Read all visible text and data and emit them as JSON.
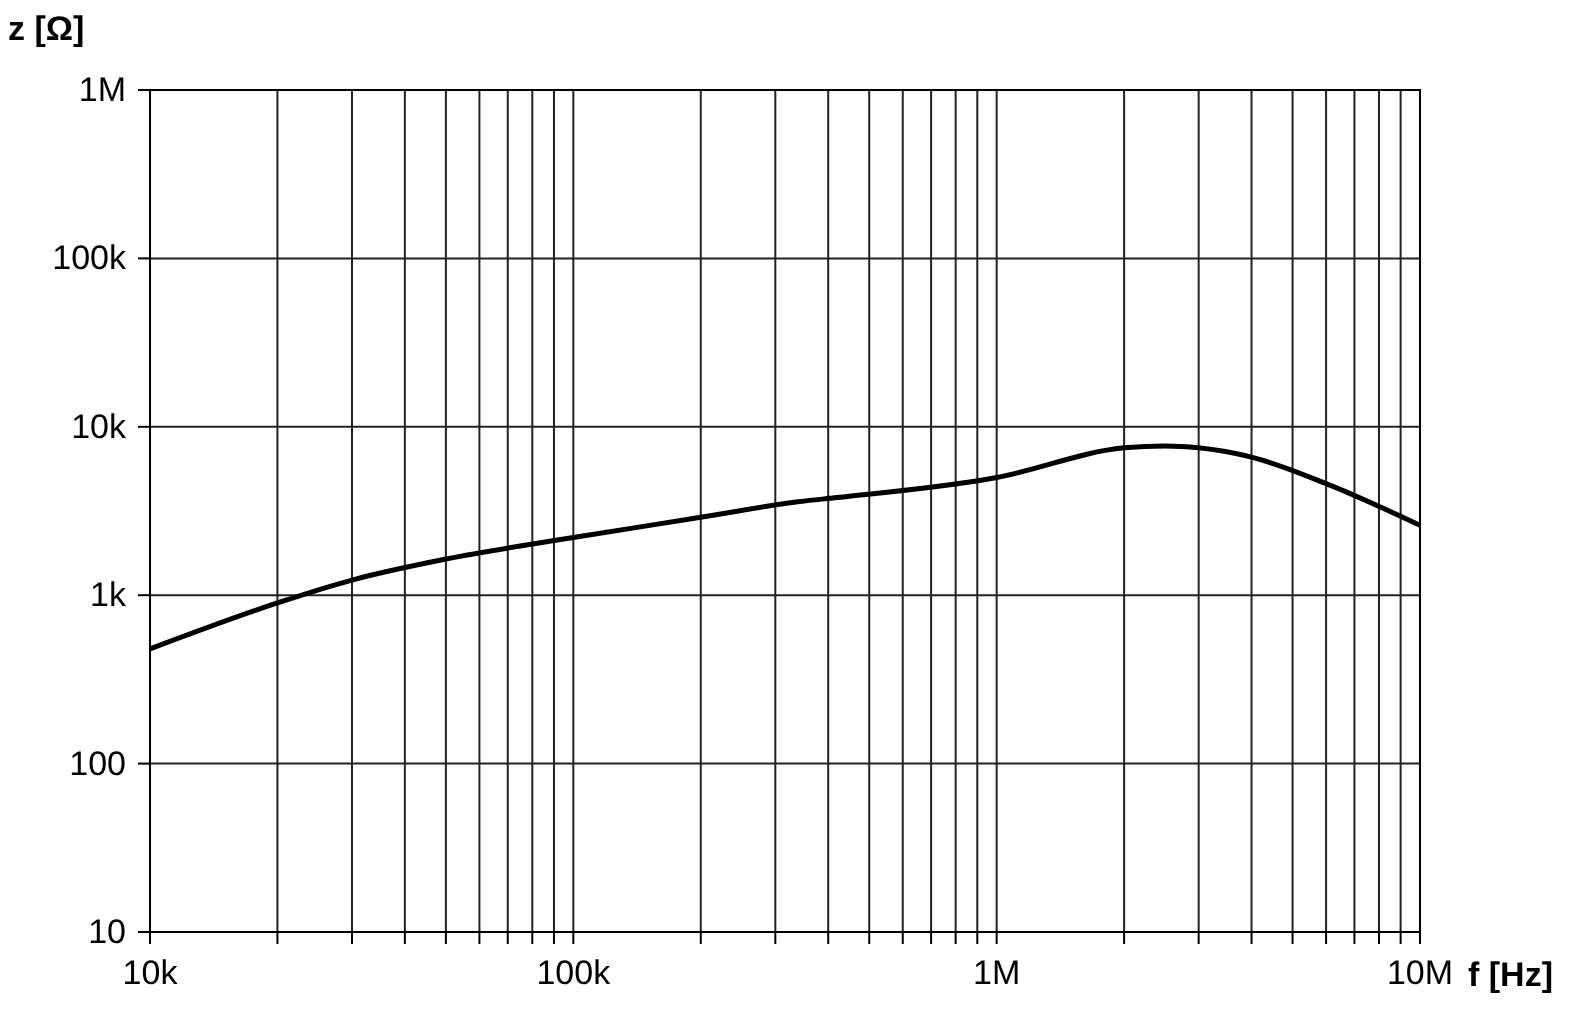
{
  "chart_data": {
    "type": "line",
    "xlabel": "f [Hz]",
    "ylabel": "z [Ω]",
    "log": "xy",
    "grid": true,
    "marker": "none",
    "line_style": "solid",
    "xlim": [
      10000,
      10000000
    ],
    "ylim": [
      10,
      1000000
    ],
    "xticks": [
      {
        "value": 10000,
        "label": "10k"
      },
      {
        "value": 20000,
        "label": null
      },
      {
        "value": 30000,
        "label": null
      },
      {
        "value": 40000,
        "label": null
      },
      {
        "value": 50000,
        "label": null
      },
      {
        "value": 60000,
        "label": null
      },
      {
        "value": 70000,
        "label": null
      },
      {
        "value": 80000,
        "label": null
      },
      {
        "value": 90000,
        "label": null
      },
      {
        "value": 100000,
        "label": "100k"
      },
      {
        "value": 200000,
        "label": null
      },
      {
        "value": 300000,
        "label": null
      },
      {
        "value": 400000,
        "label": null
      },
      {
        "value": 500000,
        "label": null
      },
      {
        "value": 600000,
        "label": null
      },
      {
        "value": 700000,
        "label": null
      },
      {
        "value": 800000,
        "label": null
      },
      {
        "value": 900000,
        "label": null
      },
      {
        "value": 1000000,
        "label": "1M"
      },
      {
        "value": 2000000,
        "label": null
      },
      {
        "value": 3000000,
        "label": null
      },
      {
        "value": 4000000,
        "label": null
      },
      {
        "value": 5000000,
        "label": null
      },
      {
        "value": 6000000,
        "label": null
      },
      {
        "value": 7000000,
        "label": null
      },
      {
        "value": 8000000,
        "label": null
      },
      {
        "value": 9000000,
        "label": null
      },
      {
        "value": 10000000,
        "label": "10M"
      }
    ],
    "yticks": [
      10,
      100,
      {
        "value": 1000,
        "label": "1k"
      },
      {
        "value": 10000,
        "label": "10k"
      },
      {
        "value": 100000,
        "label": "100k"
      },
      {
        "value": 1000000,
        "label": "1M"
      }
    ],
    "series": [
      {
        "color": "#000000",
        "x": [
          10000,
          20000,
          30000,
          50000,
          100000,
          200000,
          343000,
          420000,
          1000000,
          2000000,
          2500000,
          3000000,
          4000000,
          6000000,
          10000000
        ],
        "values": [
          480,
          900,
          1230,
          1640,
          2200,
          2900,
          3600,
          3800,
          5000,
          7500,
          7700,
          7500,
          6600,
          4600,
          2600
        ]
      }
    ]
  }
}
